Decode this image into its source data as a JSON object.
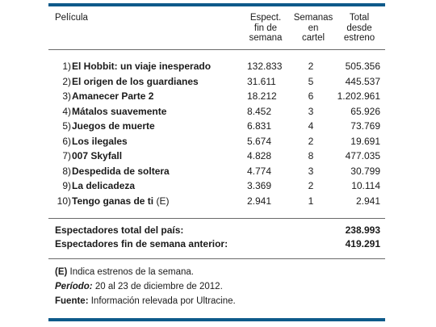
{
  "header": {
    "film": "Película",
    "weekend": [
      "Espect.",
      "fin de",
      "semana"
    ],
    "weeks": [
      "Semanas",
      "en",
      "cartel"
    ],
    "total": [
      "Total",
      "desde",
      "estreno"
    ]
  },
  "rows": [
    {
      "rank": "1)",
      "title": "El Hobbit: un viaje inesperado",
      "mark": "",
      "weekend": "132.833",
      "weeks": "2",
      "total": "505.356"
    },
    {
      "rank": "2)",
      "title": "El origen de los guardianes",
      "mark": "",
      "weekend": "31.611",
      "weeks": "5",
      "total": "445.537"
    },
    {
      "rank": "3)",
      "title": "Amanecer Parte 2",
      "mark": "",
      "weekend": "18.212",
      "weeks": "6",
      "total": "1.202.961"
    },
    {
      "rank": "4)",
      "title": "Mátalos suavemente",
      "mark": "",
      "weekend": "8.452",
      "weeks": "3",
      "total": "65.926"
    },
    {
      "rank": "5)",
      "title": "Juegos de muerte",
      "mark": "",
      "weekend": "6.831",
      "weeks": "4",
      "total": "73.769"
    },
    {
      "rank": "6)",
      "title": "Los ilegales",
      "mark": "",
      "weekend": "5.674",
      "weeks": "2",
      "total": "19.691"
    },
    {
      "rank": "7)",
      "title": "007 Skyfall",
      "mark": "",
      "weekend": "4.828",
      "weeks": "8",
      "total": "477.035"
    },
    {
      "rank": "8)",
      "title": "Despedida de soltera",
      "mark": "",
      "weekend": "4.774",
      "weeks": "3",
      "total": "30.799"
    },
    {
      "rank": "9)",
      "title": "La delicadeza",
      "mark": "",
      "weekend": "3.369",
      "weeks": "2",
      "total": "10.114"
    },
    {
      "rank": "10)",
      "title": "Tengo ganas de ti",
      "mark": "(E)",
      "weekend": "2.941",
      "weeks": "1",
      "total": "2.941"
    }
  ],
  "totals": [
    {
      "label": "Espectadores total del país:",
      "value": "238.993"
    },
    {
      "label": "Espectadores fin de semana anterior:",
      "value": "419.291"
    }
  ],
  "notes": {
    "estreno": {
      "key": "(E)",
      "text": "Indica estrenos de la semana."
    },
    "periodo": {
      "key": "Período:",
      "text": "20 al 23 de diciembre de 2012."
    },
    "fuente": {
      "key": "Fuente:",
      "text": "Información relevada por Ultracine."
    }
  },
  "colors": {
    "rule": "#0e5a8a",
    "separator": "#6a6a6a",
    "text": "#1a1a1a"
  }
}
